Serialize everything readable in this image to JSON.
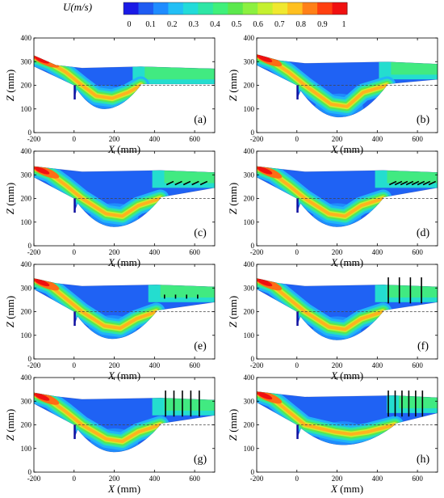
{
  "colorbar": {
    "title": "U(m/s)",
    "ticks": [
      "0",
      "0.1",
      "0.2",
      "0.3",
      "0.4",
      "0.5",
      "0.6",
      "0.7",
      "0.8",
      "0.9",
      "1"
    ],
    "colors": [
      "#1a1ae6",
      "#1f5cf2",
      "#1f8cff",
      "#22bff5",
      "#22dbd9",
      "#2ee6a5",
      "#40f07a",
      "#5ce84d",
      "#8cf040",
      "#c5f030",
      "#f0e830",
      "#ffc020",
      "#ff8018",
      "#ff4010",
      "#f01010"
    ]
  },
  "chart_data": {
    "type": "heatmap",
    "quantity": "velocity magnitude U",
    "unit": "m/s",
    "color_range": [
      0,
      1
    ],
    "x_axis": {
      "label": "X (mm)",
      "range": [
        -200,
        700
      ],
      "ticks": [
        "-200",
        "0",
        "200",
        "400",
        "600"
      ]
    },
    "y_axis": {
      "label": "Z (mm)",
      "range": [
        0,
        400
      ],
      "ticks": [
        "0",
        "100",
        "200",
        "300",
        "400"
      ]
    },
    "reference_line_z": 200,
    "panels": [
      {
        "label": "(a)",
        "inlet_z": 320,
        "free_surface_z": 275,
        "scour_bottom_z": 100,
        "scour_bottom_x": 150,
        "deflector_count": 0,
        "deflector_type": "none"
      },
      {
        "label": "(b)",
        "inlet_z": 325,
        "free_surface_z": 295,
        "scour_bottom_z": 65,
        "scour_bottom_x": 210,
        "deflector_count": 0,
        "deflector_type": "none"
      },
      {
        "label": "(c)",
        "inlet_z": 330,
        "free_surface_z": 315,
        "scour_bottom_z": 80,
        "scour_bottom_x": 200,
        "deflector_count": 5,
        "deflector_type": "inclined"
      },
      {
        "label": "(d)",
        "inlet_z": 330,
        "free_surface_z": 315,
        "scour_bottom_z": 80,
        "scour_bottom_x": 200,
        "deflector_count": 8,
        "deflector_type": "inclined"
      },
      {
        "label": "(e)",
        "inlet_z": 335,
        "free_surface_z": 310,
        "scour_bottom_z": 85,
        "scour_bottom_x": 190,
        "deflector_count": 4,
        "deflector_type": "short-vertical"
      },
      {
        "label": "(f)",
        "inlet_z": 335,
        "free_surface_z": 310,
        "scour_bottom_z": 80,
        "scour_bottom_x": 200,
        "deflector_count": 4,
        "deflector_type": "vertical"
      },
      {
        "label": "(g)",
        "inlet_z": 330,
        "free_surface_z": 310,
        "scour_bottom_z": 85,
        "scour_bottom_x": 200,
        "deflector_count": 5,
        "deflector_type": "vertical"
      },
      {
        "label": "(h)",
        "inlet_z": 335,
        "free_surface_z": 320,
        "scour_bottom_z": 115,
        "scour_bottom_x": 230,
        "deflector_count": 6,
        "deflector_type": "vertical"
      }
    ]
  }
}
